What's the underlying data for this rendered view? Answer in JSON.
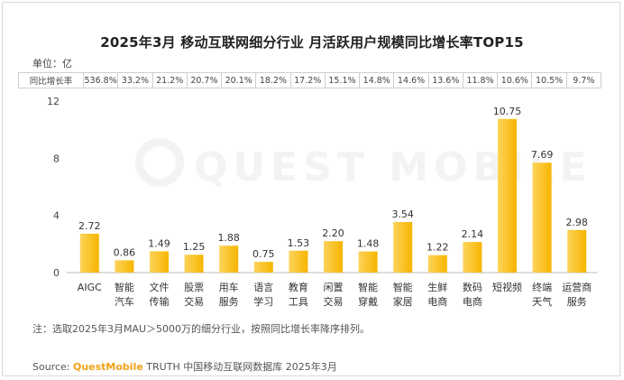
{
  "title": "2025年3月 移动互联网细分行业 月活跃用户规模同比增长率TOP15",
  "unit_label": "单位：亿",
  "growth_row_label": "同比增长率",
  "growth_rates": [
    "536.8%",
    "33.2%",
    "21.2%",
    "20.7%",
    "20.1%",
    "18.2%",
    "17.2%",
    "15.1%",
    "14.8%",
    "14.6%",
    "13.6%",
    "11.8%",
    "10.6%",
    "10.5%",
    "9.7%"
  ],
  "watermark": "QUEST MOBILE",
  "note": "注：选取2025年3月MAU＞5000万的细分行业，按照同比增长率降序排列。",
  "source": {
    "prefix": "Source: ",
    "brand": "QuestMobile",
    "rest": " TRUTH 中国移动互联网数据库 2025年3月"
  },
  "colors": {
    "bar": "#f7b500",
    "bar_light": "#fcd35a",
    "axis": "#bbbbbb",
    "label": "#333333"
  },
  "chart_data": {
    "type": "bar",
    "categories": [
      [
        "AIGC"
      ],
      [
        "智能",
        "汽车"
      ],
      [
        "文件",
        "传输"
      ],
      [
        "股票",
        "交易"
      ],
      [
        "用车",
        "服务"
      ],
      [
        "语言",
        "学习"
      ],
      [
        "教育",
        "工具"
      ],
      [
        "闲置",
        "交易"
      ],
      [
        "智能",
        "穿戴"
      ],
      [
        "智能",
        "家居"
      ],
      [
        "生鲜",
        "电商"
      ],
      [
        "数码",
        "电商"
      ],
      [
        "短视频"
      ],
      [
        "终端",
        "天气"
      ],
      [
        "运营商",
        "服务"
      ]
    ],
    "values": [
      2.72,
      0.86,
      1.49,
      1.25,
      1.88,
      0.75,
      1.53,
      2.2,
      1.48,
      3.54,
      1.22,
      2.14,
      10.75,
      7.69,
      2.98
    ],
    "value_labels": [
      "2.72",
      "0.86",
      "1.49",
      "1.25",
      "1.88",
      "0.75",
      "1.53",
      "2.20",
      "1.48",
      "3.54",
      "1.22",
      "2.14",
      "10.75",
      "7.69",
      "2.98"
    ],
    "ylim": [
      0,
      12
    ],
    "yticks": [
      "0",
      "4",
      "8",
      "12"
    ],
    "grid": false
  }
}
